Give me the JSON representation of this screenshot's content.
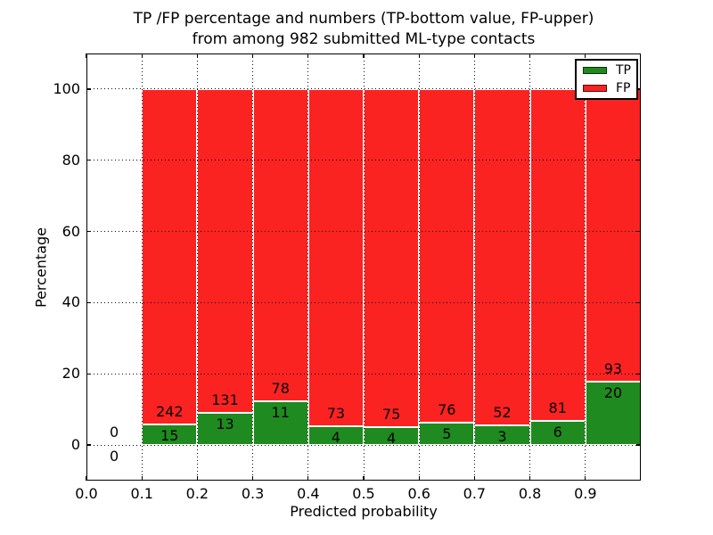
{
  "title": {
    "line1": "TP /FP percentage and numbers (TP-bottom value, FP-upper)",
    "line2": "from among 982 submitted ML-type contacts"
  },
  "axes": {
    "ylabel": "Percentage",
    "xlabel": "Predicted probability",
    "ytick_labels": [
      "0",
      "20",
      "40",
      "60",
      "80",
      "100"
    ],
    "xtick_labels": [
      "0.0",
      "0.1",
      "0.2",
      "0.3",
      "0.4",
      "0.5",
      "0.6",
      "0.7",
      "0.8",
      "0.9"
    ]
  },
  "legend": {
    "items": [
      {
        "label": "TP",
        "color": "#1f8a1f"
      },
      {
        "label": "FP",
        "color": "#fb2222"
      }
    ],
    "position": "upper right"
  },
  "chart_data": {
    "type": "bar",
    "subtype": "stacked-percentage-histogram",
    "title": "TP /FP percentage and numbers (TP-bottom value, FP-upper) from among 982 submitted ML-type contacts",
    "xlabel": "Predicted probability",
    "ylabel": "Percentage",
    "xlim": [
      0.0,
      1.0
    ],
    "ylim": [
      -10,
      110
    ],
    "yticks": [
      0,
      20,
      40,
      60,
      80,
      100
    ],
    "xticks": [
      0.0,
      0.1,
      0.2,
      0.3,
      0.4,
      0.5,
      0.6,
      0.7,
      0.8,
      0.9
    ],
    "bin_width": 0.1,
    "bin_starts": [
      0.0,
      0.1,
      0.2,
      0.3,
      0.4,
      0.5,
      0.6,
      0.7,
      0.8,
      0.9
    ],
    "series": [
      {
        "name": "TP",
        "color": "#1f8a1f",
        "counts": [
          0,
          15,
          13,
          11,
          4,
          4,
          5,
          3,
          6,
          20
        ]
      },
      {
        "name": "FP",
        "color": "#fb2222",
        "counts": [
          0,
          242,
          131,
          78,
          73,
          75,
          76,
          52,
          81,
          93
        ]
      }
    ],
    "bars_normalized_to_percent": 100,
    "total_contacts": 982,
    "grid": true,
    "grid_style": "dotted",
    "grid_above_bars": true,
    "bar_edge_color": "#ffffff",
    "label_color": "#000000"
  }
}
